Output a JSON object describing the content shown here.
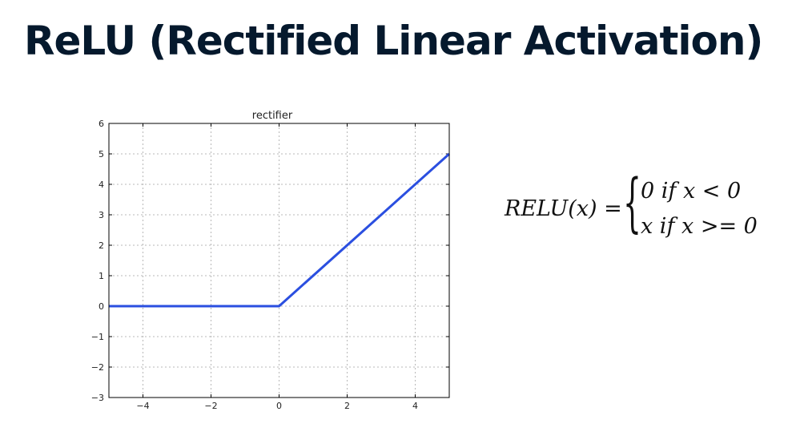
{
  "slide": {
    "title": "ReLU (Rectified Linear Activation)"
  },
  "formula": {
    "lhs": "RELU(x) =",
    "case_1": "0 if  x < 0",
    "case_2": "x if  x >= 0"
  },
  "colors": {
    "title": "#05192d",
    "line": "#2b4fe0",
    "grid": "#b8b8b8"
  },
  "chart_data": {
    "type": "line",
    "title": "rectifier",
    "xlabel": "",
    "ylabel": "",
    "xlim": [
      -5,
      5
    ],
    "ylim": [
      -3,
      6
    ],
    "xticks": [
      -4,
      -2,
      0,
      2,
      4
    ],
    "yticks": [
      -3,
      -2,
      -1,
      0,
      1,
      2,
      3,
      4,
      5,
      6
    ],
    "grid": true,
    "series": [
      {
        "x": [
          -5,
          0,
          5
        ],
        "y": [
          0,
          0,
          5
        ]
      }
    ]
  }
}
